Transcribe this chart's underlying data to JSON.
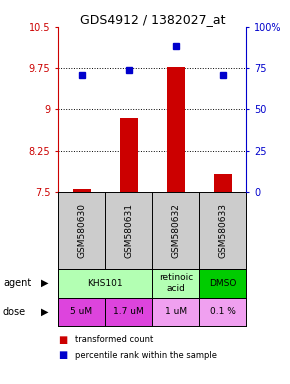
{
  "title": "GDS4912 / 1382027_at",
  "samples": [
    "GSM580630",
    "GSM580631",
    "GSM580632",
    "GSM580633"
  ],
  "bar_values": [
    7.55,
    8.85,
    9.77,
    7.82
  ],
  "bar_base": 7.5,
  "dot_values": [
    9.63,
    9.72,
    10.15,
    9.63
  ],
  "ylim_left": [
    7.5,
    10.5
  ],
  "ylim_right": [
    0,
    100
  ],
  "yticks_left": [
    7.5,
    8.25,
    9.0,
    9.75,
    10.5
  ],
  "yticks_right": [
    0,
    25,
    50,
    75,
    100
  ],
  "ytick_labels_left": [
    "7.5",
    "8.25",
    "9",
    "9.75",
    "10.5"
  ],
  "ytick_labels_right": [
    "0",
    "25",
    "50",
    "75",
    "100%"
  ],
  "hlines": [
    8.25,
    9.0,
    9.75
  ],
  "bar_color": "#cc0000",
  "dot_color": "#0000cc",
  "agent_info": [
    [
      0.5,
      2.5,
      "KHS101",
      "#b3ffb3"
    ],
    [
      2.5,
      3.5,
      "retinoic\nacid",
      "#b3ffb3"
    ],
    [
      3.5,
      4.5,
      "DMSO",
      "#00cc00"
    ]
  ],
  "dose_info": [
    [
      0.5,
      1.5,
      "5 uM",
      "#dd44dd"
    ],
    [
      1.5,
      2.5,
      "1.7 uM",
      "#dd44dd"
    ],
    [
      2.5,
      3.5,
      "1 uM",
      "#f0a0f0"
    ],
    [
      3.5,
      4.5,
      "0.1 %",
      "#f0a0f0"
    ]
  ],
  "left_yaxis_color": "#cc0000",
  "right_yaxis_color": "#0000cc",
  "sample_bg_color": "#cccccc",
  "xlim": [
    0.5,
    4.5
  ]
}
